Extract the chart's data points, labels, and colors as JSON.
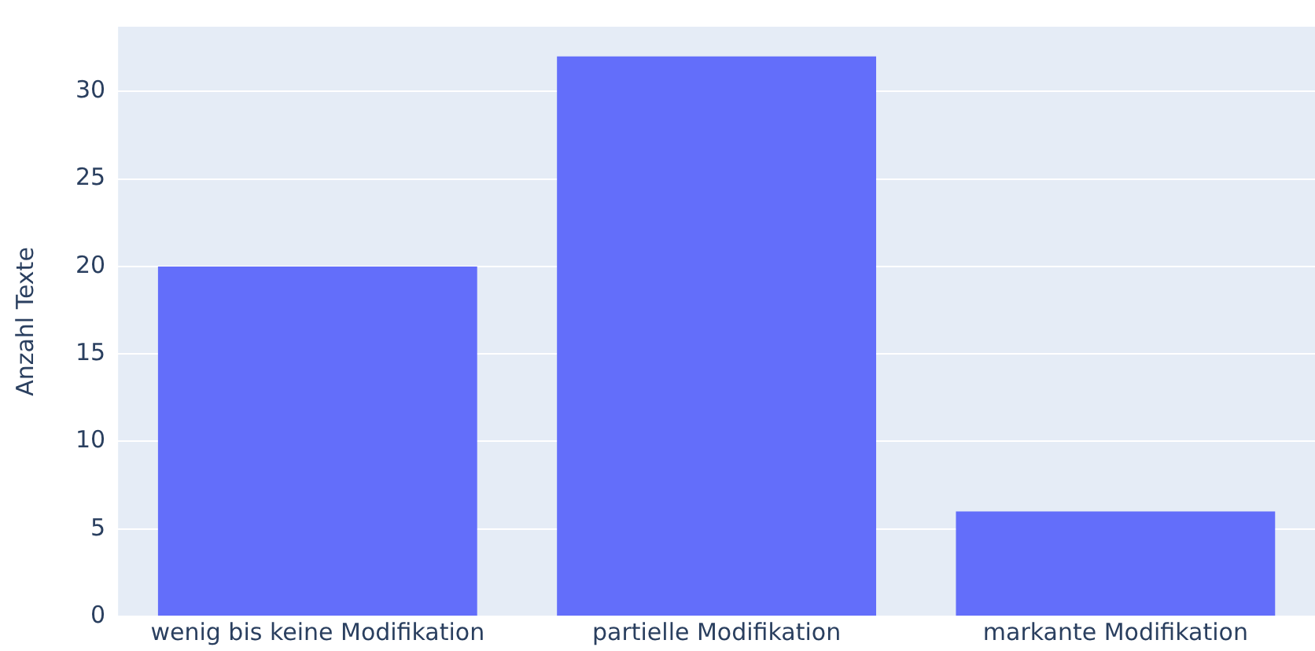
{
  "chart_data": {
    "type": "bar",
    "ylabel": "Anzahl Texte",
    "categories": [
      "wenig bis keine Modifikation",
      "partielle Modifikation",
      "markante Modifikation"
    ],
    "values": [
      20,
      32,
      6
    ],
    "color": "#636efa",
    "ylim": [
      0,
      33.7
    ],
    "yticks": [
      0,
      5,
      10,
      15,
      20,
      25,
      30
    ],
    "grid": "y",
    "legend": false
  }
}
